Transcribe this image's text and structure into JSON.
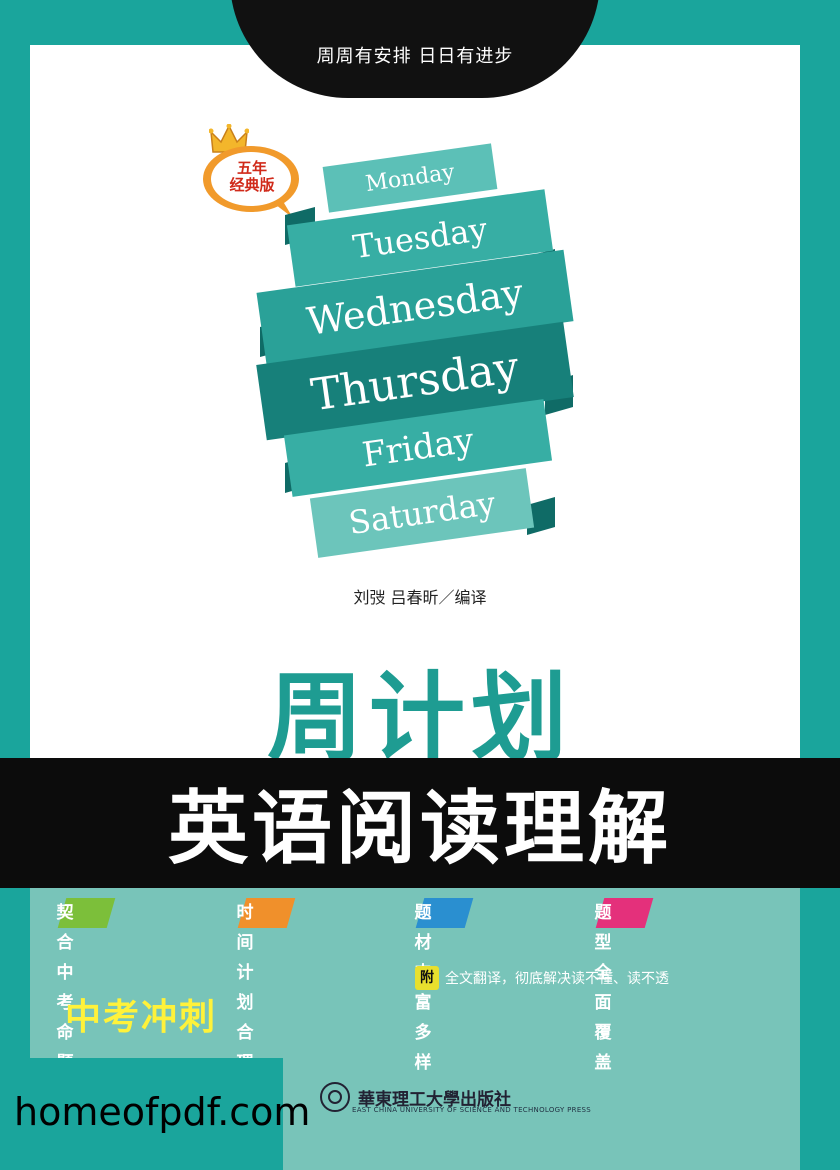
{
  "header": {
    "slogan": "周周有安排  日日有进步"
  },
  "badge": {
    "line1": "五年",
    "line2": "经典版"
  },
  "ribbons": [
    "Monday",
    "Tuesday",
    "Wednesday",
    "Thursday",
    "Friday",
    "Saturday"
  ],
  "credit": "刘弢 吕春昕／编译",
  "brand": "周计划",
  "title": "英语阅读理解",
  "tags": [
    {
      "label": "契合中考命题",
      "color": "#7cbf3a"
    },
    {
      "label": "时间计划合理",
      "color": "#f0902b"
    },
    {
      "label": "题材丰富多样",
      "color": "#2a8fd0"
    },
    {
      "label": "题型全面覆盖",
      "color": "#e4307b"
    }
  ],
  "note": {
    "prefix": "附",
    "text": "全文翻译，彻底解决读不懂、读不透"
  },
  "subtitle": "中考冲刺",
  "publisher": {
    "name": "華東理工大學出版社",
    "english": "EAST CHINA UNIVERSITY OF SCIENCE AND TECHNOLOGY PRESS"
  },
  "watermark": "homeofpdf.com",
  "colors": {
    "teal": "#1aa59c",
    "light_teal": "#78c4b9",
    "ribbon_light": "#5cc0b7",
    "ribbon_mid": "#37aea4",
    "ribbon_dark": "#17807a"
  }
}
